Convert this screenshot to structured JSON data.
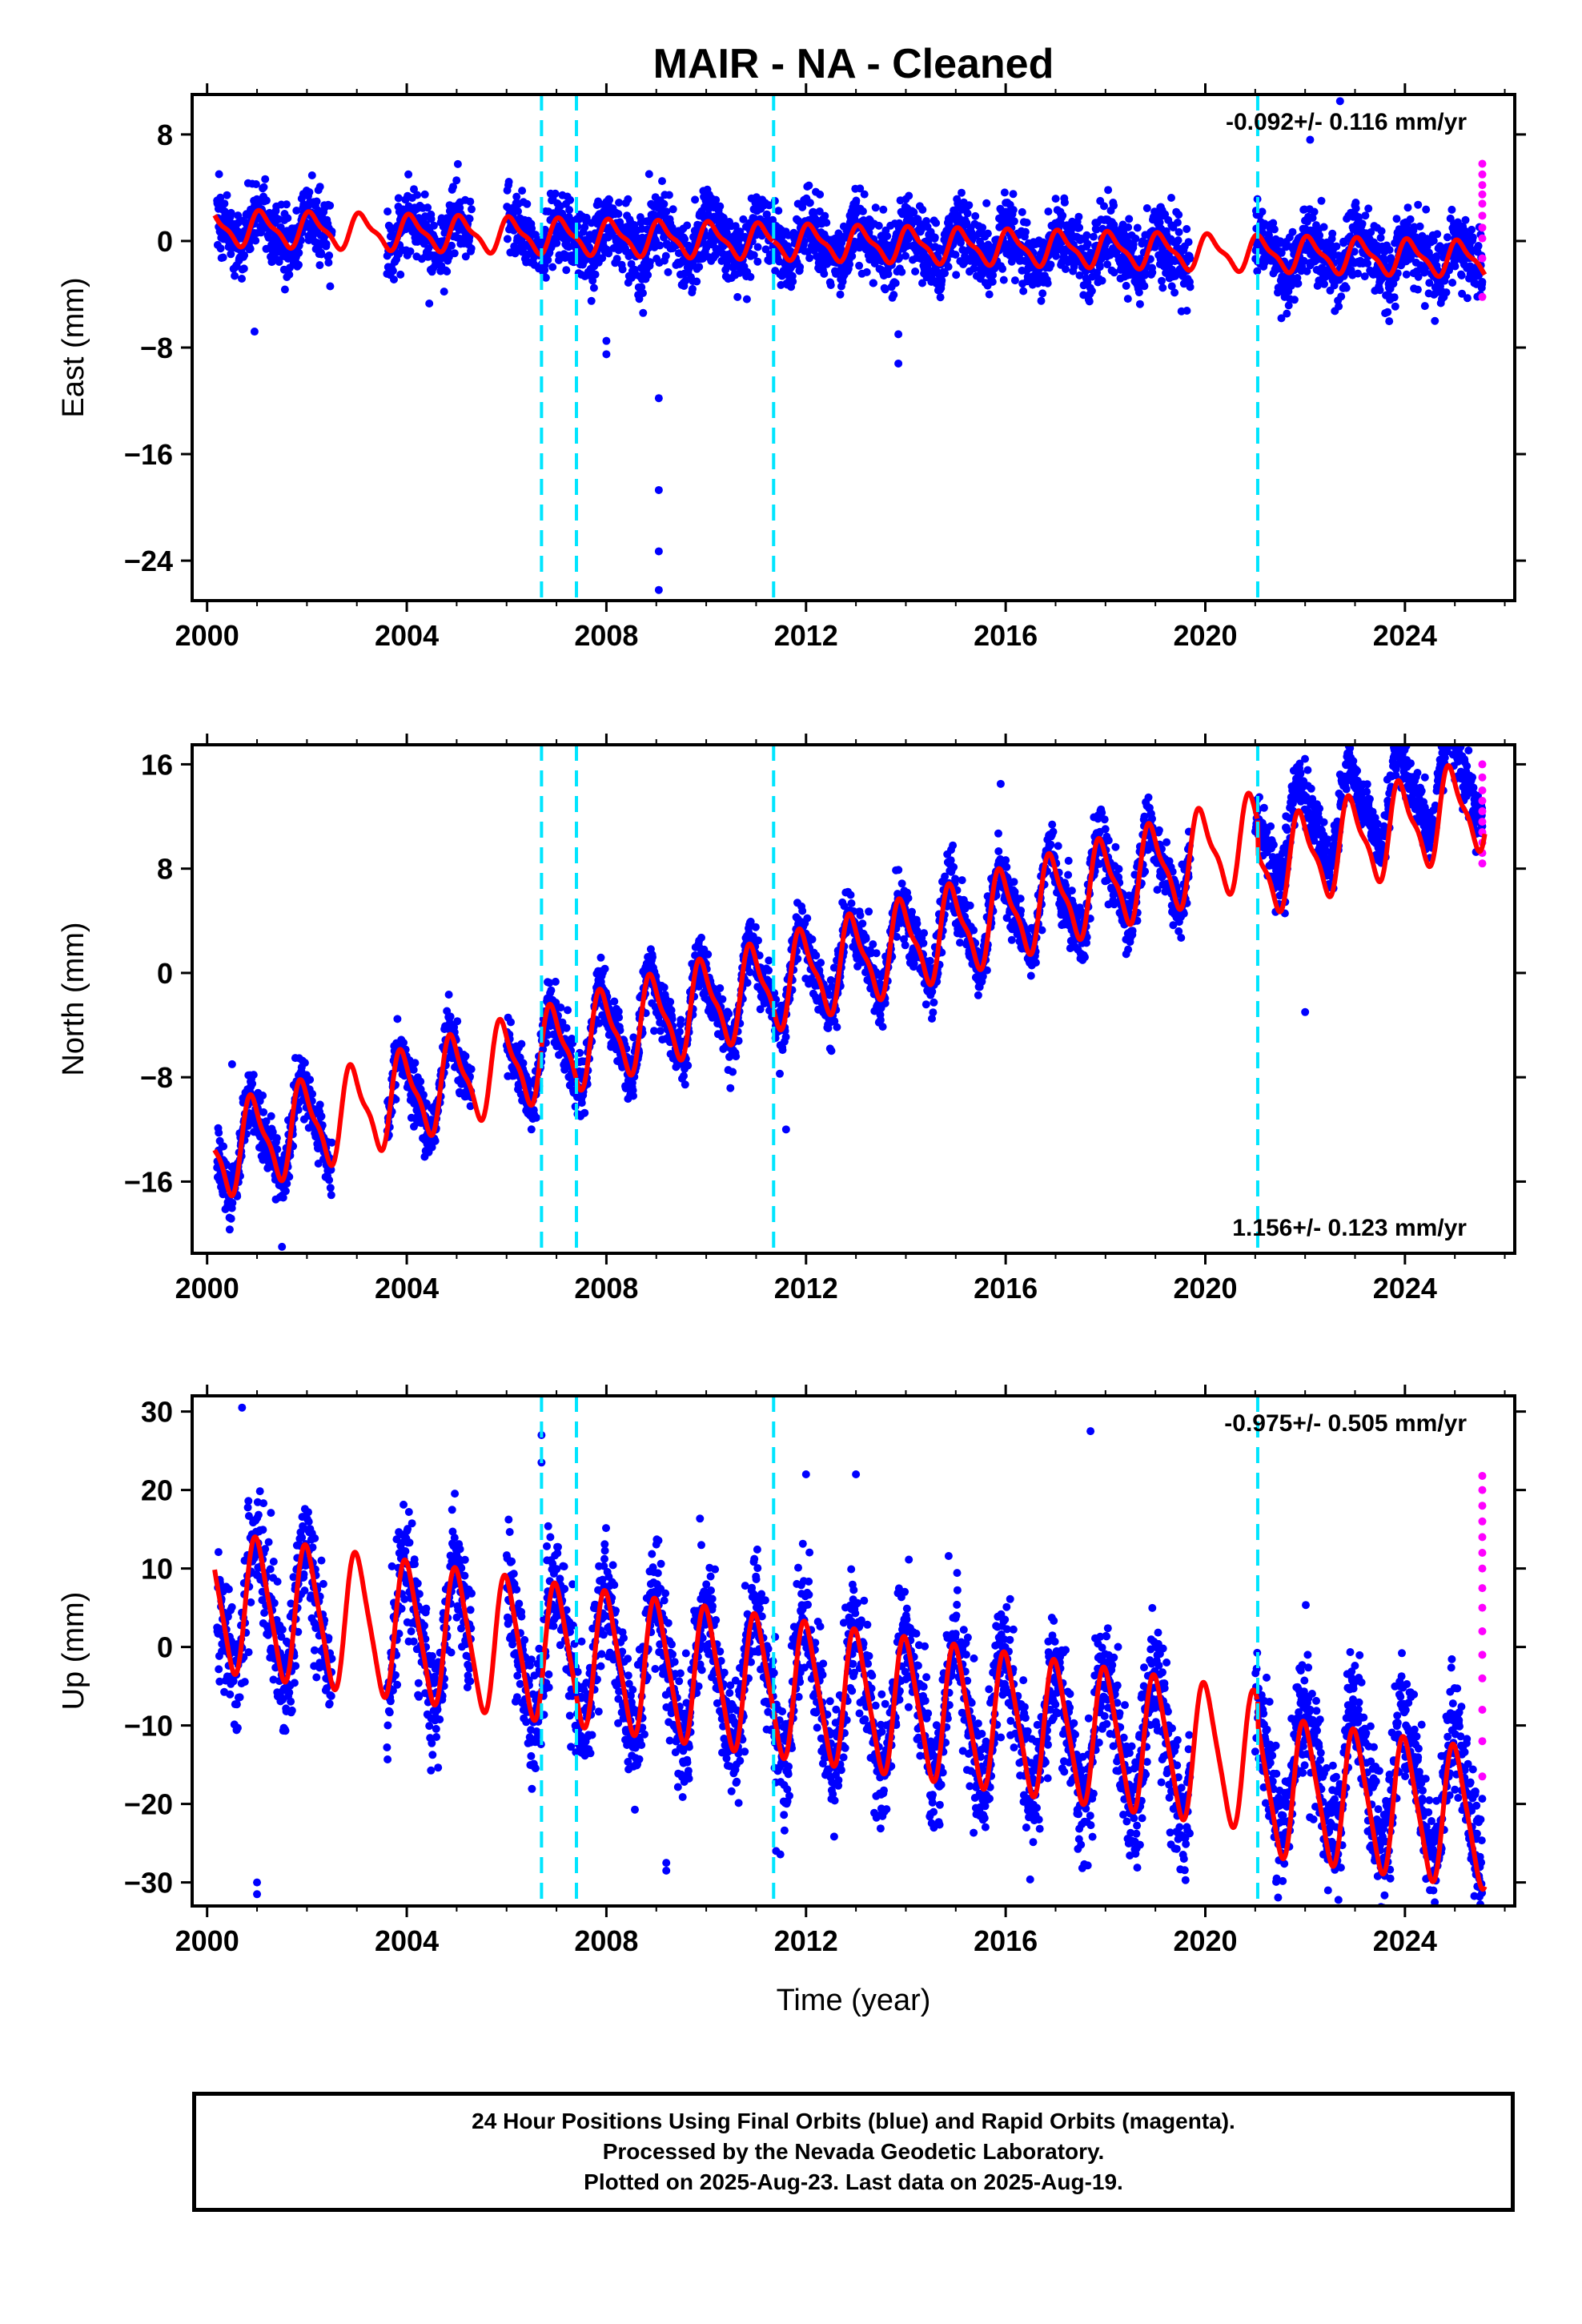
{
  "title": "MAIR  - NA - Cleaned",
  "caption": [
    "24 Hour Positions Using Final Orbits (blue) and Rapid Orbits (magenta).",
    "Processed by the Nevada Geodetic Laboratory.",
    "Plotted on 2025-Aug-23. Last data on 2025-Aug-19."
  ],
  "colors": {
    "final_orbits": "#0000ff",
    "rapid_orbits": "#ff00ff",
    "model_fit": "#ff0000",
    "equipment_change": "#00e5ff"
  },
  "chart_data": [
    {
      "type": "scatter",
      "name": "east",
      "ylabel": "East (mm)",
      "xlabel": "",
      "xlim": [
        1999.7,
        2026.2
      ],
      "ylim": [
        -27,
        11
      ],
      "xticks": [
        2000,
        2004,
        2008,
        2012,
        2016,
        2020,
        2024
      ],
      "yticks": [
        8,
        0,
        -8,
        -16,
        -24
      ],
      "ytick_labels": [
        "8",
        "0",
        "−8",
        "−16",
        "−24"
      ],
      "rate_annotation": "-0.092+/- 0.116 mm/yr",
      "annotation_position": "top-right",
      "equipment_changes": [
        2006.7,
        2007.4,
        2011.35,
        2021.05
      ],
      "model": {
        "offset_2000": 1.0,
        "rate": -0.092,
        "annual_amplitude": 1.2,
        "annual_phase": 0.9,
        "semiannual_amplitude": 0.4
      },
      "scatter_sd": 1.3,
      "outliers": [
        [
          2000.95,
          -6.8
        ],
        [
          2007.7,
          -4.5
        ],
        [
          2008.0,
          -8.5
        ],
        [
          2008.0,
          -7.5
        ],
        [
          2009.05,
          -11.8
        ],
        [
          2009.05,
          -18.7
        ],
        [
          2009.05,
          -23.3
        ],
        [
          2009.05,
          -26.2
        ],
        [
          2013.85,
          -7.0
        ],
        [
          2013.85,
          -9.2
        ],
        [
          2022.1,
          7.6
        ],
        [
          2022.7,
          10.5
        ],
        [
          2024.6,
          -6.0
        ]
      ],
      "rapid": {
        "x": 2025.55,
        "values": [
          5.8,
          5.0,
          4.2,
          3.5,
          2.8,
          1.9,
          1.0,
          0.2,
          -1.3,
          -4.2
        ]
      }
    },
    {
      "type": "scatter",
      "name": "north",
      "ylabel": "North (mm)",
      "xlabel": "",
      "xlim": [
        1999.7,
        2026.2
      ],
      "ylim": [
        -21.5,
        17.5
      ],
      "xticks": [
        2000,
        2004,
        2008,
        2012,
        2016,
        2020,
        2024
      ],
      "yticks": [
        16,
        8,
        0,
        -8,
        -16
      ],
      "ytick_labels": [
        "16",
        "8",
        "0",
        "−8",
        "−16"
      ],
      "rate_annotation": "1.156+/- 0.123 mm/yr",
      "annotation_position": "bottom-right",
      "equipment_changes": [
        2006.7,
        2007.4,
        2011.35,
        2021.05
      ],
      "model": {
        "offset_2000": -14.0,
        "rate": 1.156,
        "annual_amplitude": 3.2,
        "annual_phase": 2.0,
        "semiannual_amplitude": 1.0
      },
      "scatter_sd": 1.1,
      "outliers": [
        [
          2000.5,
          -7.0
        ],
        [
          2001.5,
          -21.0
        ],
        [
          2011.6,
          -12.0
        ],
        [
          2015.9,
          14.5
        ],
        [
          2022.0,
          -3.0
        ],
        [
          2024.4,
          15.0
        ]
      ],
      "rapid": {
        "x": 2025.55,
        "values": [
          16.0,
          15.0,
          14.0,
          13.2,
          12.4,
          11.6,
          10.8,
          10.0,
          9.2,
          8.4
        ]
      }
    },
    {
      "type": "scatter",
      "name": "up",
      "ylabel": "Up (mm)",
      "xlabel": "Time (year)",
      "xlim": [
        1999.7,
        2026.2
      ],
      "ylim": [
        -33,
        32
      ],
      "xticks": [
        2000,
        2004,
        2008,
        2012,
        2016,
        2020,
        2024
      ],
      "yticks": [
        30,
        20,
        10,
        0,
        -10,
        -20,
        -30
      ],
      "ytick_labels": [
        "30",
        "20",
        "10",
        "0",
        "−10",
        "−20",
        "−30"
      ],
      "rate_annotation": "-0.975+/- 0.505 mm/yr",
      "annotation_position": "top-right",
      "equipment_changes": [
        2006.7,
        2007.4,
        2011.35,
        2021.05
      ],
      "model": {
        "offset_2000": 6.0,
        "rate": -0.975,
        "annual_amplitude": 8.5,
        "annual_phase": 1.5,
        "semiannual_amplitude": 1.5
      },
      "scatter_sd": 4.0,
      "outliers": [
        [
          2000.7,
          30.5
        ],
        [
          2001.0,
          -30.0
        ],
        [
          2001.0,
          -31.5
        ],
        [
          2006.7,
          27.0
        ],
        [
          2006.7,
          23.5
        ],
        [
          2009.2,
          -28.5
        ],
        [
          2009.2,
          -27.5
        ],
        [
          2011.4,
          -26.0
        ],
        [
          2012.0,
          22.0
        ],
        [
          2013.0,
          22.0
        ],
        [
          2017.7,
          27.5
        ],
        [
          2018.5,
          -25.0
        ]
      ],
      "rapid": {
        "x": 2025.55,
        "values": [
          21.8,
          20.0,
          18.0,
          16.0,
          14.0,
          12.0,
          10.0,
          7.5,
          5.0,
          2.0,
          -1.0,
          -4.0,
          -8.0,
          -12.0,
          -16.5
        ]
      }
    }
  ]
}
